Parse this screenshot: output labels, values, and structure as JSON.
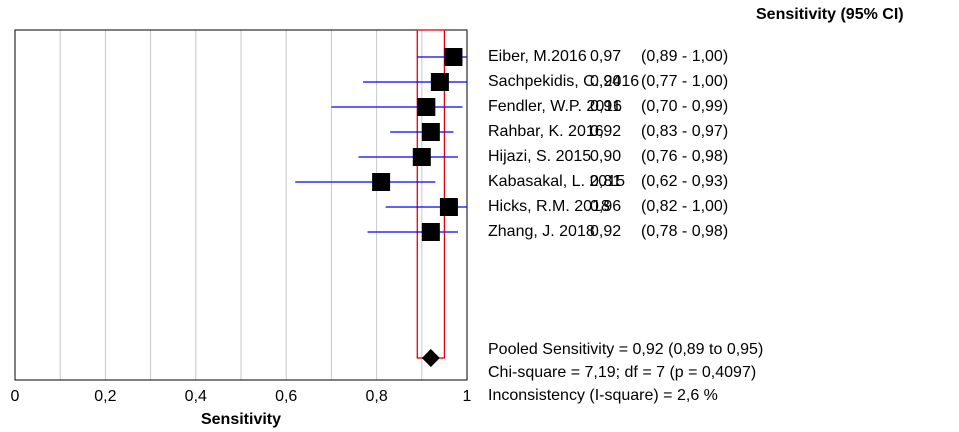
{
  "chart_data": {
    "type": "forest",
    "header": "Sensitivity (95% CI)",
    "x_label": "Sensitivity",
    "categories": [
      "Eiber, M.2016",
      "Sachpekidis, C. 2016",
      "Fendler, W.P. 2016",
      "Rahbar, K. 2016",
      "Hijazi, S. 2015",
      "Kabasakal, L. 2015",
      "Hicks, R.M. 2018",
      "Zhang, J. 2018"
    ],
    "values": [
      0.97,
      0.94,
      0.91,
      0.92,
      0.9,
      0.81,
      0.96,
      0.92
    ],
    "value_labels": [
      "0,97",
      "0,94",
      "0,91",
      "0,92",
      "0,90",
      "0,81",
      "0,96",
      "0,92"
    ],
    "ci_lower": [
      0.89,
      0.77,
      0.7,
      0.83,
      0.76,
      0.62,
      0.82,
      0.78
    ],
    "ci_upper": [
      1.0,
      1.0,
      0.99,
      0.97,
      0.98,
      0.93,
      1.0,
      0.98
    ],
    "ci_labels": [
      "(0,89 - 1,00)",
      "(0,77 - 1,00)",
      "(0,70 - 0,99)",
      "(0,83 - 0,97)",
      "(0,76 - 0,98)",
      "(0,62 - 0,93)",
      "(0,82 - 1,00)",
      "(0,78 - 0,98)"
    ],
    "pooled": {
      "value": 0.92,
      "lower": 0.89,
      "upper": 0.95
    },
    "annotations": [
      "Pooled Sensitivity = 0,92 (0,89 to 0,95)",
      "Chi-square = 7,19; df =  7 (p = 0,4097)",
      "Inconsistency (I-square) = 2,6 %"
    ],
    "xlim": [
      0,
      1
    ],
    "xticks": [
      0,
      {
        "value": 0.2,
        "label": "0,2"
      },
      {
        "value": 0.4,
        "label": "0,4"
      },
      {
        "value": 0.6,
        "label": "0,6"
      },
      {
        "value": 0.8,
        "label": "0,8"
      },
      1
    ],
    "xminor": [
      0.1,
      0.3,
      0.5,
      0.7,
      0.9
    ],
    "marker_color": "#000000",
    "ci_color": "#0000ff",
    "pooled_box_color": "#e8000b",
    "grid": true
  }
}
